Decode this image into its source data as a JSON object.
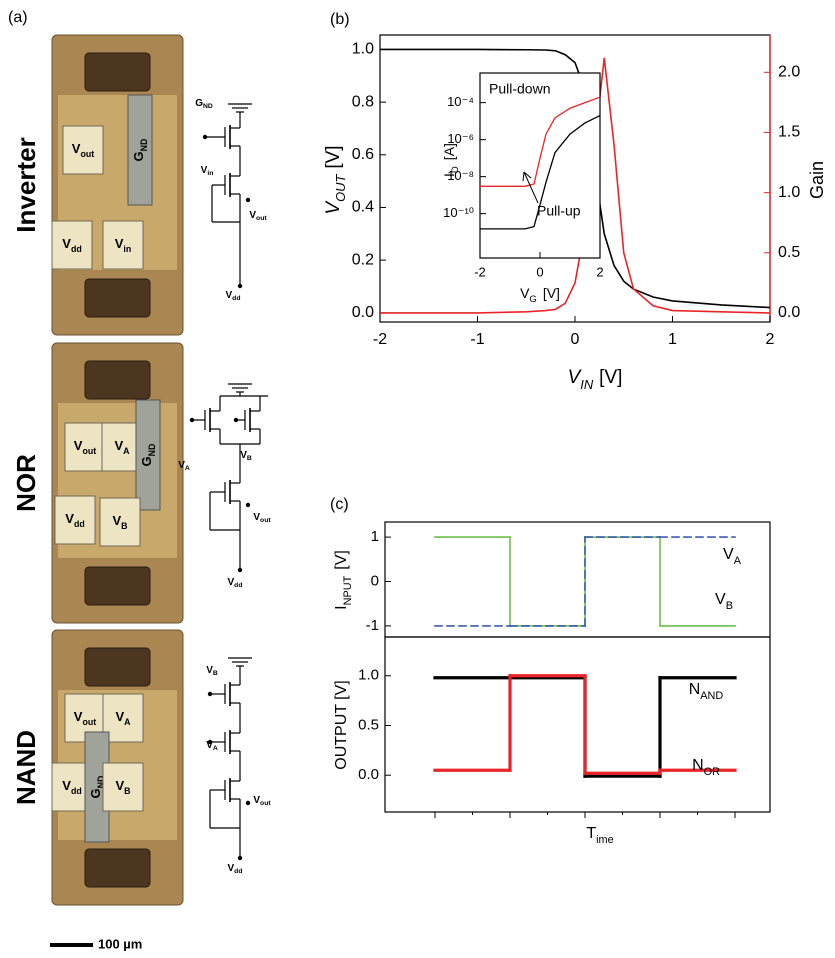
{
  "panel_a": {
    "label": "(a)",
    "devices": [
      {
        "name": "Inverter",
        "pads": [
          "Vout",
          "GND",
          "Vdd",
          "Vin"
        ],
        "schematic": [
          "GND",
          "Vin",
          "Vout",
          "Vdd"
        ]
      },
      {
        "name": "NOR",
        "pads": [
          "Vout",
          "VA",
          "GND",
          "Vdd",
          "VB"
        ],
        "schematic": [
          "VA",
          "VB",
          "Vout",
          "Vdd"
        ]
      },
      {
        "name": "NAND",
        "pads": [
          "Vout",
          "VA",
          "Vdd",
          "GND",
          "VB"
        ],
        "schematic": [
          "VB",
          "VA",
          "Vout",
          "Vdd"
        ]
      }
    ],
    "scale_bar": "100 µm"
  },
  "chart_data": [
    {
      "type": "line",
      "panel_label": "(b)",
      "xlabel": "VIN [V]",
      "ylabel": "VOUT [V]",
      "y2label": "Gain",
      "y2color": "#e8262a",
      "xlim": [
        -2,
        2
      ],
      "xticks": [
        -2,
        -1,
        0,
        1,
        2
      ],
      "ylim": [
        -0.035,
        1.055
      ],
      "yticks": [
        {
          "value": 0,
          "label": "0.0"
        },
        {
          "value": 0.2,
          "label": "0.2"
        },
        {
          "value": 0.4,
          "label": "0.4"
        },
        {
          "value": 0.6,
          "label": "0.6"
        },
        {
          "value": 0.8,
          "label": "0.8"
        },
        {
          "value": 1,
          "label": "1.0"
        }
      ],
      "y2lim": [
        -0.075,
        2.31
      ],
      "y2ticks": [
        {
          "value": 0,
          "label": "0.0"
        },
        {
          "value": 0.5,
          "label": "0.5"
        },
        {
          "value": 1,
          "label": "1.0"
        },
        {
          "value": 1.5,
          "label": "1.5"
        },
        {
          "value": 2,
          "label": "2.0"
        }
      ],
      "x": [
        -2,
        -1.5,
        -1,
        -0.5,
        -0.3,
        -0.2,
        -0.1,
        0,
        0.1,
        0.2,
        0.3,
        0.4,
        0.5,
        0.6,
        0.8,
        1,
        1.5,
        2
      ],
      "series": [
        {
          "color": "#000000",
          "values": [
            1.0,
            1.0,
            1.0,
            0.999,
            0.998,
            0.995,
            0.98,
            0.95,
            0.85,
            0.55,
            0.3,
            0.18,
            0.12,
            0.09,
            0.06,
            0.045,
            0.03,
            0.02
          ]
        },
        {
          "color": "#e8262a",
          "axis": "y2",
          "values": [
            0,
            0,
            0,
            0.01,
            0.02,
            0.03,
            0.08,
            0.25,
            0.7,
            1.4,
            2.12,
            1.4,
            0.5,
            0.2,
            0.06,
            0.02,
            0.01,
            0
          ]
        }
      ]
    },
    {
      "type": "line",
      "xlabel": "VG [V]",
      "ylabel": "ID [A]",
      "yscale": "log",
      "xlim": [
        -2,
        2
      ],
      "xticks": [
        -2,
        0,
        2
      ],
      "ylim": [
        4e-13,
        0.004
      ],
      "yticks": [
        {
          "value": 1e-10,
          "label": "10⁻¹⁰"
        },
        {
          "value": 1e-08,
          "label": "10⁻⁸"
        },
        {
          "value": 1e-06,
          "label": "10⁻⁶"
        },
        {
          "value": 0.0001,
          "label": "10⁻⁴"
        }
      ],
      "x": [
        -2,
        -1.5,
        -1,
        -0.5,
        -0.2,
        0,
        0.2,
        0.5,
        1,
        1.5,
        2
      ],
      "series": [
        {
          "name": "Pull-down",
          "color": "#e8262a",
          "values": [
            3e-09,
            3e-09,
            3e-09,
            3e-09,
            4e-09,
            1e-07,
            2e-06,
            1.5e-05,
            5e-05,
            0.0001,
            0.0002
          ]
        },
        {
          "name": "Pull-up",
          "color": "#000000",
          "values": [
            1.5e-11,
            1.5e-11,
            1.5e-11,
            1.5e-11,
            2e-11,
            3e-10,
            5e-09,
            2e-07,
            2e-06,
            8e-06,
            2e-05
          ]
        }
      ]
    },
    {
      "type": "step",
      "panel_label": "(c)",
      "ylabel": "INPUT [V]",
      "categories": [
        null,
        null,
        null,
        null
      ],
      "ylim": [
        -1.25,
        1.34
      ],
      "yticks": [
        -1,
        0,
        1
      ],
      "series": [
        {
          "name": "VA",
          "color": "#3b5bb5",
          "dash": true,
          "values": [
            -1,
            -1,
            1,
            1
          ]
        },
        {
          "name": "VB",
          "color": "#6cbf4a",
          "values": [
            1,
            -1,
            1,
            -1
          ]
        }
      ]
    },
    {
      "type": "step",
      "xlabel": "Time",
      "ylabel": "OUTPUT [V]",
      "categories": [
        null,
        null,
        null,
        null
      ],
      "ylim": [
        -0.37,
        1.39
      ],
      "yticks": [
        {
          "value": 0,
          "label": "0.0"
        },
        {
          "value": 0.5,
          "label": "0.5"
        },
        {
          "value": 1,
          "label": "1.0"
        }
      ],
      "series": [
        {
          "name": "NAND",
          "color": "#000000",
          "values": [
            0.98,
            0.98,
            -0.01,
            0.98
          ]
        },
        {
          "name": "NOR",
          "color": "#e8262a",
          "values": [
            0.05,
            1.0,
            0.02,
            0.05
          ]
        }
      ]
    }
  ]
}
